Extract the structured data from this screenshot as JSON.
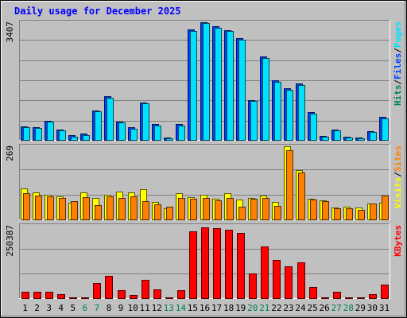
{
  "title": "Daily usage for December 2025",
  "colors": {
    "background": "#c0c0c0",
    "panel_bg": "#c0c0c0",
    "grid": "#808080",
    "title": "#0000ff",
    "hits": "#00805c",
    "files": "#0040ff",
    "pages": "#00e0ff",
    "visits": "#ffff00",
    "sites": "#ff8000",
    "kbytes": "#ff0000",
    "weekend_day": "#00805c",
    "weekday": "#000000"
  },
  "chart_data": [
    {
      "type": "bar",
      "panel": "hits-files-pages",
      "scale_label": "3407",
      "ylim": [
        0,
        3407
      ],
      "grid": true,
      "legend": [
        {
          "name": "Hits",
          "color_key": "hits"
        },
        {
          "name": "Files",
          "color_key": "files"
        },
        {
          "name": "Pages",
          "color_key": "pages"
        }
      ],
      "x": [
        1,
        2,
        3,
        4,
        5,
        6,
        7,
        8,
        9,
        10,
        11,
        12,
        13,
        14,
        15,
        16,
        17,
        18,
        19,
        20,
        21,
        22,
        23,
        24,
        25,
        26,
        27,
        28,
        29,
        30,
        31
      ],
      "series": [
        {
          "name": "Files",
          "color_key": "files",
          "values": [
            390,
            360,
            550,
            300,
            130,
            180,
            850,
            1270,
            540,
            360,
            1090,
            460,
            60,
            450,
            3210,
            3407,
            3290,
            3180,
            2950,
            1160,
            2420,
            1730,
            1490,
            1630,
            800,
            120,
            310,
            100,
            70,
            260,
            670
          ]
        },
        {
          "name": "Pages",
          "color_key": "pages",
          "values": [
            370,
            340,
            520,
            270,
            100,
            140,
            820,
            1230,
            510,
            330,
            1050,
            420,
            40,
            420,
            3160,
            3380,
            3250,
            3150,
            2910,
            1130,
            2380,
            1690,
            1460,
            1590,
            760,
            90,
            270,
            70,
            50,
            230,
            630
          ]
        }
      ]
    },
    {
      "type": "bar",
      "panel": "sites-visits",
      "scale_label": "269",
      "ylim": [
        0,
        269
      ],
      "grid": true,
      "legend": [
        {
          "name": "Visits",
          "color_key": "visits"
        },
        {
          "name": "Sites",
          "color_key": "sites"
        }
      ],
      "x": [
        1,
        2,
        3,
        4,
        5,
        6,
        7,
        8,
        9,
        10,
        11,
        12,
        13,
        14,
        15,
        16,
        17,
        18,
        19,
        20,
        21,
        22,
        23,
        24,
        25,
        26,
        27,
        28,
        29,
        30,
        31
      ],
      "series": [
        {
          "name": "Visits",
          "color_key": "visits",
          "values": [
            115,
            100,
            92,
            85,
            62,
            100,
            78,
            92,
            102,
            98,
            110,
            65,
            40,
            96,
            82,
            92,
            76,
            97,
            73,
            80,
            88,
            64,
            269,
            182,
            76,
            70,
            45,
            48,
            44,
            58,
            62
          ]
        },
        {
          "name": "Sites",
          "color_key": "sites",
          "values": [
            96,
            87,
            84,
            78,
            68,
            82,
            54,
            84,
            80,
            84,
            68,
            55,
            48,
            80,
            76,
            78,
            70,
            78,
            48,
            77,
            80,
            50,
            254,
            172,
            72,
            67,
            42,
            42,
            34,
            58,
            88
          ]
        }
      ]
    },
    {
      "type": "bar",
      "panel": "kbytes",
      "scale_label": "250387",
      "ylim": [
        0,
        250387
      ],
      "grid": true,
      "legend": [
        {
          "name": "KBytes",
          "color_key": "kbytes"
        }
      ],
      "x": [
        1,
        2,
        3,
        4,
        5,
        6,
        7,
        8,
        9,
        10,
        11,
        12,
        13,
        14,
        15,
        16,
        17,
        18,
        19,
        20,
        21,
        22,
        23,
        24,
        25,
        26,
        27,
        28,
        29,
        30,
        31
      ],
      "series": [
        {
          "name": "KBytes",
          "color_key": "kbytes",
          "values": [
            22000,
            22000,
            22000,
            14000,
            4000,
            4000,
            52000,
            78000,
            28000,
            12000,
            63000,
            31000,
            4000,
            27000,
            230000,
            245000,
            243000,
            236000,
            225000,
            84000,
            178000,
            131000,
            111000,
            124000,
            38000,
            4000,
            22000,
            4000,
            4000,
            14000,
            47000
          ]
        }
      ]
    }
  ],
  "x_axis": {
    "labels": [
      "1",
      "2",
      "3",
      "4",
      "5",
      "6",
      "7",
      "8",
      "9",
      "10",
      "11",
      "12",
      "13",
      "14",
      "15",
      "16",
      "17",
      "18",
      "19",
      "20",
      "21",
      "22",
      "23",
      "24",
      "25",
      "26",
      "27",
      "28",
      "29",
      "30",
      "31"
    ],
    "weekend_days": [
      6,
      7,
      13,
      14,
      20,
      21,
      27,
      28
    ]
  }
}
